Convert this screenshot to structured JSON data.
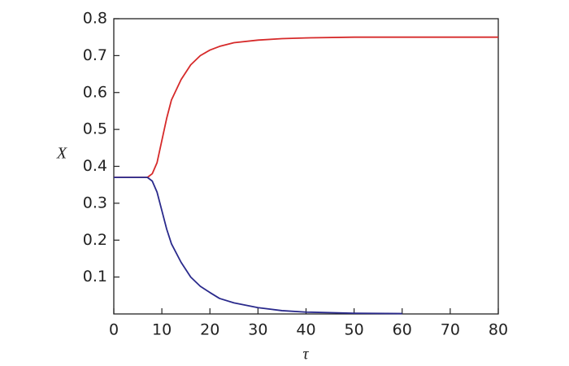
{
  "chart_data": {
    "type": "line",
    "x_label": "τ",
    "y_label": "X",
    "series": [
      {
        "color": "#d62a2a",
        "x": [
          0,
          7,
          8,
          9,
          10,
          11,
          12,
          14,
          16,
          18,
          20,
          22,
          25,
          30,
          35,
          40,
          50,
          60,
          70,
          80
        ],
        "values": [
          0.37,
          0.37,
          0.38,
          0.41,
          0.47,
          0.53,
          0.58,
          0.635,
          0.675,
          0.7,
          0.715,
          0.725,
          0.735,
          0.742,
          0.746,
          0.748,
          0.75,
          0.75,
          0.75,
          0.75
        ]
      },
      {
        "color": "#2a2a8c",
        "x": [
          0,
          7,
          8,
          9,
          10,
          11,
          12,
          14,
          16,
          18,
          20,
          22,
          25,
          30,
          35,
          40,
          50,
          60
        ],
        "values": [
          0.37,
          0.37,
          0.36,
          0.33,
          0.28,
          0.23,
          0.19,
          0.14,
          0.1,
          0.075,
          0.058,
          0.042,
          0.03,
          0.017,
          0.009,
          0.005,
          0.002,
          0.001
        ]
      }
    ],
    "xlim": [
      0,
      80
    ],
    "xticks": [
      0,
      10,
      20,
      30,
      40,
      50,
      60,
      70,
      80
    ],
    "ylim": [
      0,
      0.8
    ],
    "yticks": [
      0.1,
      0.2,
      0.3,
      0.4,
      0.5,
      0.6,
      0.7,
      0.8
    ]
  }
}
